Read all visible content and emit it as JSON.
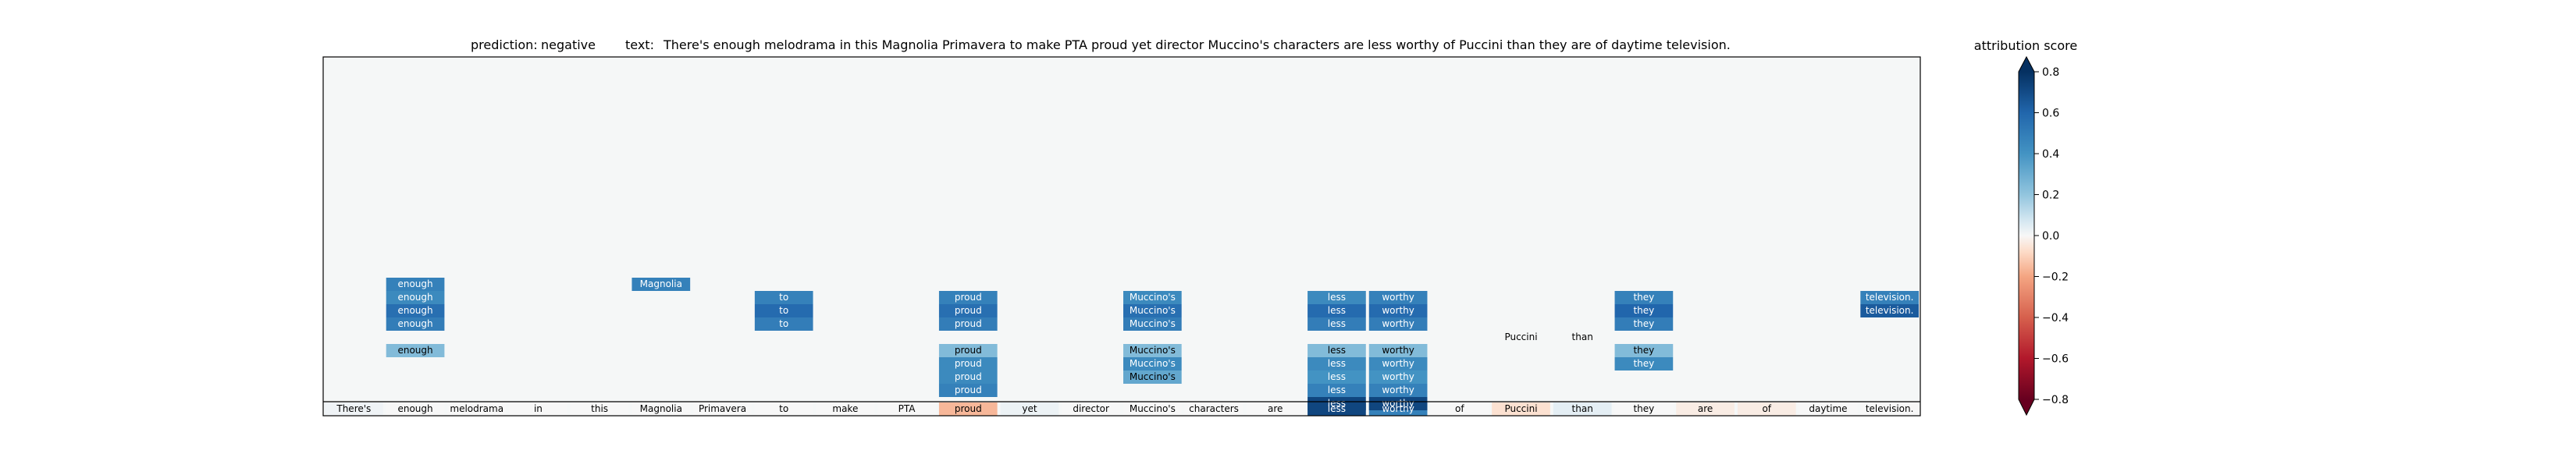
{
  "chart_data": {
    "type": "heatmap",
    "title": {
      "prediction_label": "prediction:",
      "prediction_value": "negative",
      "text_label": "text:",
      "text_value": "There's enough melodrama in this Magnolia Primavera to make PTA proud yet director Muccino's characters are less worthy of Puccini than they are of daytime television."
    },
    "tokens": [
      "There's",
      "enough",
      "melodrama",
      "in",
      "this",
      "Magnolia",
      "Primavera",
      "to",
      "make",
      "PTA",
      "proud",
      "yet",
      "director",
      "Muccino's",
      "characters",
      "are",
      "less",
      "worthy",
      "of",
      "Puccini",
      "than",
      "they",
      "are",
      "of",
      "daytime",
      "television."
    ],
    "base_row_scores": [
      0.02,
      0.0,
      0.0,
      0.0,
      0.0,
      0.0,
      0.0,
      0.0,
      0.0,
      0.0,
      -0.2,
      0.03,
      0.0,
      0.0,
      0.0,
      0.0,
      0.9,
      0.6,
      0.0,
      -0.08,
      0.05,
      0.0,
      -0.04,
      -0.04,
      0.0,
      0.0
    ],
    "upper_rows": [
      [
        null,
        0.6,
        null,
        null,
        null,
        0.6,
        null,
        null,
        null,
        null,
        null,
        null,
        null,
        null,
        null,
        null,
        null,
        null,
        null,
        null,
        null,
        null,
        null,
        null,
        null,
        null
      ],
      [
        null,
        0.55,
        null,
        null,
        null,
        null,
        null,
        0.6,
        null,
        null,
        0.6,
        null,
        null,
        0.55,
        null,
        null,
        0.55,
        0.6,
        null,
        null,
        null,
        0.6,
        null,
        null,
        null,
        0.6
      ],
      [
        null,
        0.7,
        null,
        null,
        null,
        null,
        null,
        0.72,
        null,
        null,
        0.7,
        null,
        null,
        0.7,
        null,
        null,
        0.72,
        0.72,
        null,
        null,
        null,
        0.75,
        null,
        null,
        null,
        0.8
      ],
      [
        null,
        0.62,
        null,
        null,
        null,
        null,
        null,
        0.62,
        null,
        null,
        0.62,
        null,
        null,
        0.62,
        null,
        null,
        0.62,
        0.62,
        null,
        null,
        null,
        0.62,
        null,
        null,
        null,
        null
      ],
      [
        null,
        null,
        null,
        null,
        null,
        null,
        null,
        null,
        null,
        null,
        null,
        null,
        null,
        null,
        null,
        null,
        null,
        null,
        null,
        0.0,
        0.0,
        null,
        null,
        null,
        null,
        null
      ],
      [
        null,
        0.3,
        null,
        null,
        null,
        null,
        null,
        null,
        null,
        null,
        0.3,
        null,
        null,
        0.3,
        null,
        null,
        0.3,
        0.3,
        null,
        null,
        null,
        0.3,
        null,
        null,
        null,
        null
      ],
      [
        null,
        null,
        null,
        null,
        null,
        null,
        null,
        null,
        null,
        null,
        0.55,
        null,
        null,
        0.55,
        null,
        null,
        0.55,
        0.55,
        null,
        null,
        null,
        0.55,
        null,
        null,
        null,
        null
      ],
      [
        null,
        null,
        null,
        null,
        null,
        null,
        null,
        null,
        null,
        null,
        0.55,
        null,
        null,
        0.4,
        null,
        null,
        0.5,
        0.5,
        null,
        null,
        null,
        null,
        null,
        null,
        null,
        null
      ],
      [
        null,
        null,
        null,
        null,
        null,
        null,
        null,
        null,
        null,
        null,
        0.6,
        null,
        null,
        null,
        null,
        null,
        0.6,
        0.6,
        null,
        null,
        null,
        null,
        null,
        null,
        null,
        null
      ],
      [
        null,
        null,
        null,
        null,
        null,
        null,
        null,
        null,
        null,
        null,
        null,
        null,
        null,
        null,
        null,
        null,
        0.9,
        0.9,
        null,
        null,
        null,
        null,
        null,
        null,
        null,
        null
      ]
    ],
    "colorbar": {
      "label": "attribution score",
      "ticks": [
        "0.8",
        "0.6",
        "0.4",
        "0.2",
        "0.0",
        "−0.2",
        "−0.4",
        "−0.6",
        "−0.8"
      ],
      "range": [
        -0.8,
        0.8
      ],
      "colormap": "RdBu",
      "extend": "both"
    },
    "background_color": "#f5f7f7",
    "grid": false
  }
}
